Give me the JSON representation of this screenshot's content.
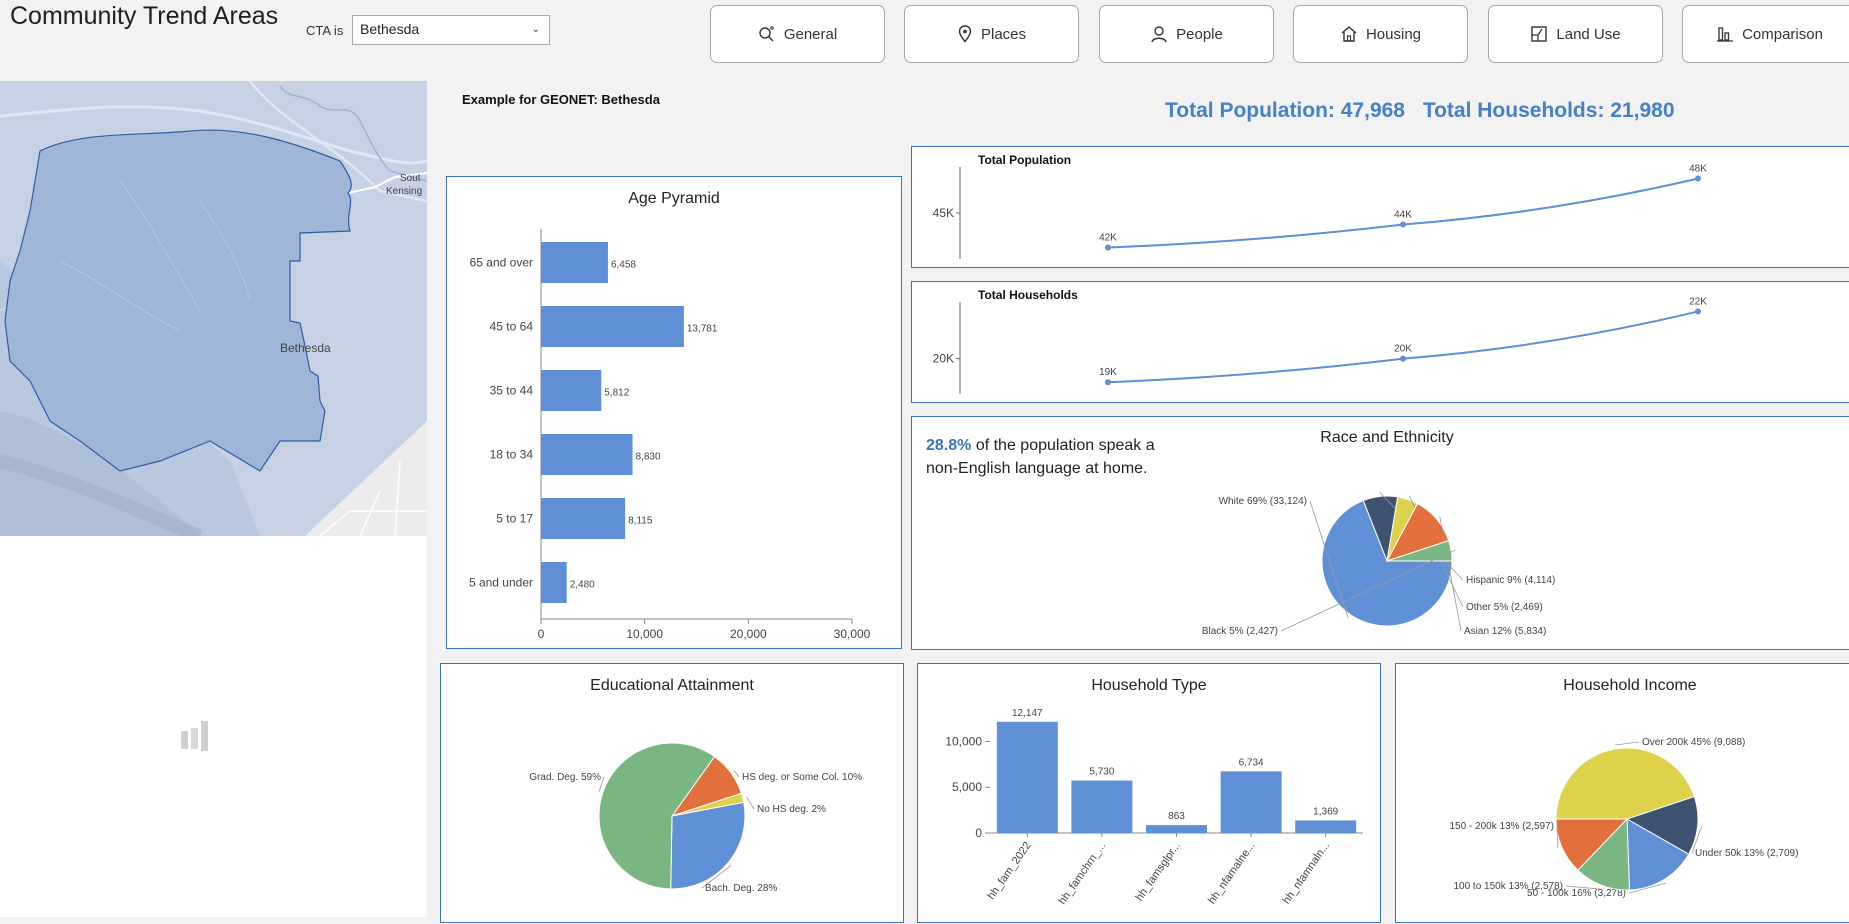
{
  "app": {
    "title": "Community Trend Areas"
  },
  "filter": {
    "label": "CTA is",
    "value": "Bethesda"
  },
  "nav": [
    {
      "label": "General",
      "icon": "search-icon"
    },
    {
      "label": "Places",
      "icon": "map-pin-icon"
    },
    {
      "label": "People",
      "icon": "person-icon"
    },
    {
      "label": "Housing",
      "icon": "home-icon"
    },
    {
      "label": "Land Use",
      "icon": "land-use-icon"
    },
    {
      "label": "Comparison",
      "icon": "bar-chart-icon"
    }
  ],
  "map": {
    "place_label": "Bethesda",
    "edge_label_1": "Sout",
    "edge_label_2": "Kensing"
  },
  "example_label": "Example for GEONET: Bethesda",
  "totals": {
    "population": "Total Population: 47,968",
    "households": "Total Households: 21,980"
  },
  "language_note": {
    "percent": "28.8%",
    "text": " of the population speak a non-English language at home."
  },
  "colors": {
    "accent": "#3a74c0",
    "bar": "#5f8fd4",
    "total_text": "#4680c8"
  },
  "chart_data": [
    {
      "id": "age-pyramid",
      "type": "bar",
      "orientation": "horizontal",
      "title": "Age Pyramid",
      "categories": [
        "65 and over",
        "45 to 64",
        "35 to 44",
        "18 to 34",
        "5 to 17",
        "5 and under"
      ],
      "values": [
        6458,
        13781,
        5812,
        8830,
        8115,
        2480
      ],
      "labels": [
        "6,458",
        "13,781",
        "5,812",
        "8,830",
        "8,115",
        "2,480"
      ],
      "xlim": [
        0,
        30000
      ],
      "xticks": [
        "0",
        "10,000",
        "20,000",
        "30,000"
      ]
    },
    {
      "id": "total-population",
      "type": "line",
      "title": "Total Population",
      "values": [
        42000,
        44000,
        48000
      ],
      "labels": [
        "42K",
        "44K",
        "48K"
      ],
      "ytick": "45K",
      "ytick_value": 45000,
      "ylim": [
        41000,
        49000
      ]
    },
    {
      "id": "total-households",
      "type": "line",
      "title": "Total Households",
      "values": [
        19000,
        20000,
        22000
      ],
      "labels": [
        "19K",
        "20K",
        "22K"
      ],
      "ytick": "20K",
      "ytick_value": 20000,
      "ylim": [
        18500,
        22400
      ]
    },
    {
      "id": "race-ethnicity",
      "type": "pie",
      "title": "Race and Ethnicity",
      "slices": [
        {
          "label": "White 69% (33,124)",
          "value": 33124,
          "color": "#5f8fd4"
        },
        {
          "label": "Hispanic 9% (4,114)",
          "value": 4114,
          "color": "#3f5270"
        },
        {
          "label": "Other 5% (2,469)",
          "value": 2469,
          "color": "#ddd24a"
        },
        {
          "label": "Asian 12% (5,834)",
          "value": 5834,
          "color": "#e2703c"
        },
        {
          "label": "Black 5% (2,427)",
          "value": 2427,
          "color": "#7ab682"
        }
      ]
    },
    {
      "id": "educational-attainment",
      "type": "pie",
      "title": "Educational Attainment",
      "slices": [
        {
          "label": "HS deg. or Some Col. 10%",
          "value": 10,
          "color": "#e2703c"
        },
        {
          "label": "No HS deg. 2%",
          "value": 2,
          "color": "#ddd24a"
        },
        {
          "label": "Bach. Deg. 28%",
          "value": 28,
          "color": "#5f8fd4"
        },
        {
          "label": "Grad. Deg. 59%",
          "value": 59,
          "color": "#7ab682"
        }
      ]
    },
    {
      "id": "household-type",
      "type": "bar",
      "title": "Household Type",
      "categories": [
        "hh_fam_2022",
        "hh_famchrn_...",
        "hh_famsglpr...",
        "hh_nfamalne...",
        "hh_nfamnaln..."
      ],
      "values": [
        12147,
        5730,
        863,
        6734,
        1369
      ],
      "labels": [
        "12,147",
        "5,730",
        "863",
        "6,734",
        "1,369"
      ],
      "ylim": [
        0,
        13000
      ],
      "yticks": [
        "0",
        "5,000",
        "10,000"
      ]
    },
    {
      "id": "household-income",
      "type": "pie",
      "title": "Household Income",
      "slices": [
        {
          "label": "Over 200k 45% (9,088)",
          "value": 9088,
          "color": "#ddd24a"
        },
        {
          "label": "Under 50k 13% (2,709)",
          "value": 2709,
          "color": "#3f5270"
        },
        {
          "label": "50 - 100k 16% (3,278)",
          "value": 3278,
          "color": "#5f8fd4"
        },
        {
          "label": "100 to 150k 13% (2,578)",
          "value": 2578,
          "color": "#7ab682"
        },
        {
          "label": "150 - 200k 13% (2,597)",
          "value": 2597,
          "color": "#e2703c"
        }
      ]
    }
  ]
}
